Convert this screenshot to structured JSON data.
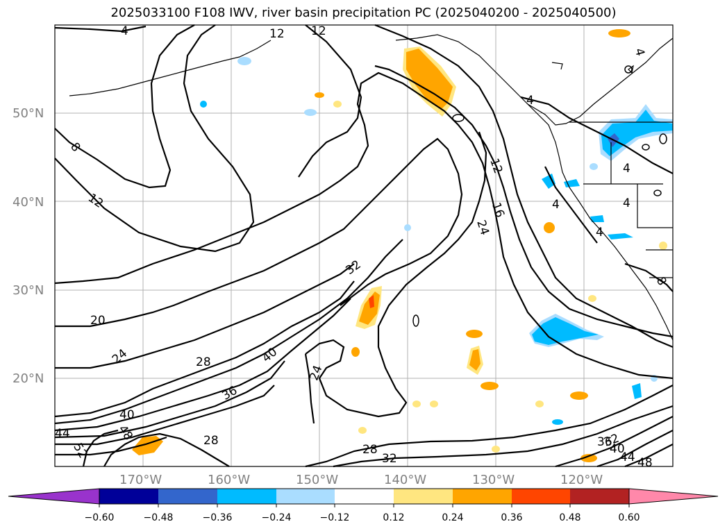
{
  "title": "2025033100 F108 IWV, river basin precipitation PC (2025040200 - 2025040500)",
  "lat_labels": [
    "50°N",
    "40°N",
    "30°N",
    "20°N"
  ],
  "lon_labels": [
    "170°W",
    "160°W",
    "150°W",
    "140°W",
    "130°W",
    "120°W"
  ],
  "contour_labels": [
    "4",
    "12",
    "12",
    "8",
    "12",
    "4",
    "12",
    "16",
    "24",
    "32",
    "20",
    "24",
    "28",
    "40",
    "24",
    "36",
    "40",
    "48",
    "44",
    "52",
    "28",
    "28",
    "32",
    "32",
    "36",
    "40",
    "44",
    "48",
    "4",
    "4",
    "4",
    "4",
    "4",
    "8"
  ],
  "colorbar": {
    "ticks": [
      "−0.60",
      "−0.48",
      "−0.36",
      "−0.24",
      "−0.12",
      "0.12",
      "0.24",
      "0.36",
      "0.48",
      "0.60"
    ],
    "colors": [
      "#9933cc",
      "#000099",
      "#3366cc",
      "#00bbff",
      "#aaddff",
      "#ffffff",
      "#ffe680",
      "#ffa500",
      "#ff4500",
      "#b22222",
      "#ff88aa"
    ]
  },
  "colors": {
    "strong_positive": "#ff4500",
    "positive": "#ffa500",
    "weak_positive": "#ffe680",
    "weak_negative": "#aaddff",
    "negative": "#00bbff",
    "strong_negative": "#3366cc",
    "grid": "#b0b0b0",
    "contour": "#000000"
  }
}
